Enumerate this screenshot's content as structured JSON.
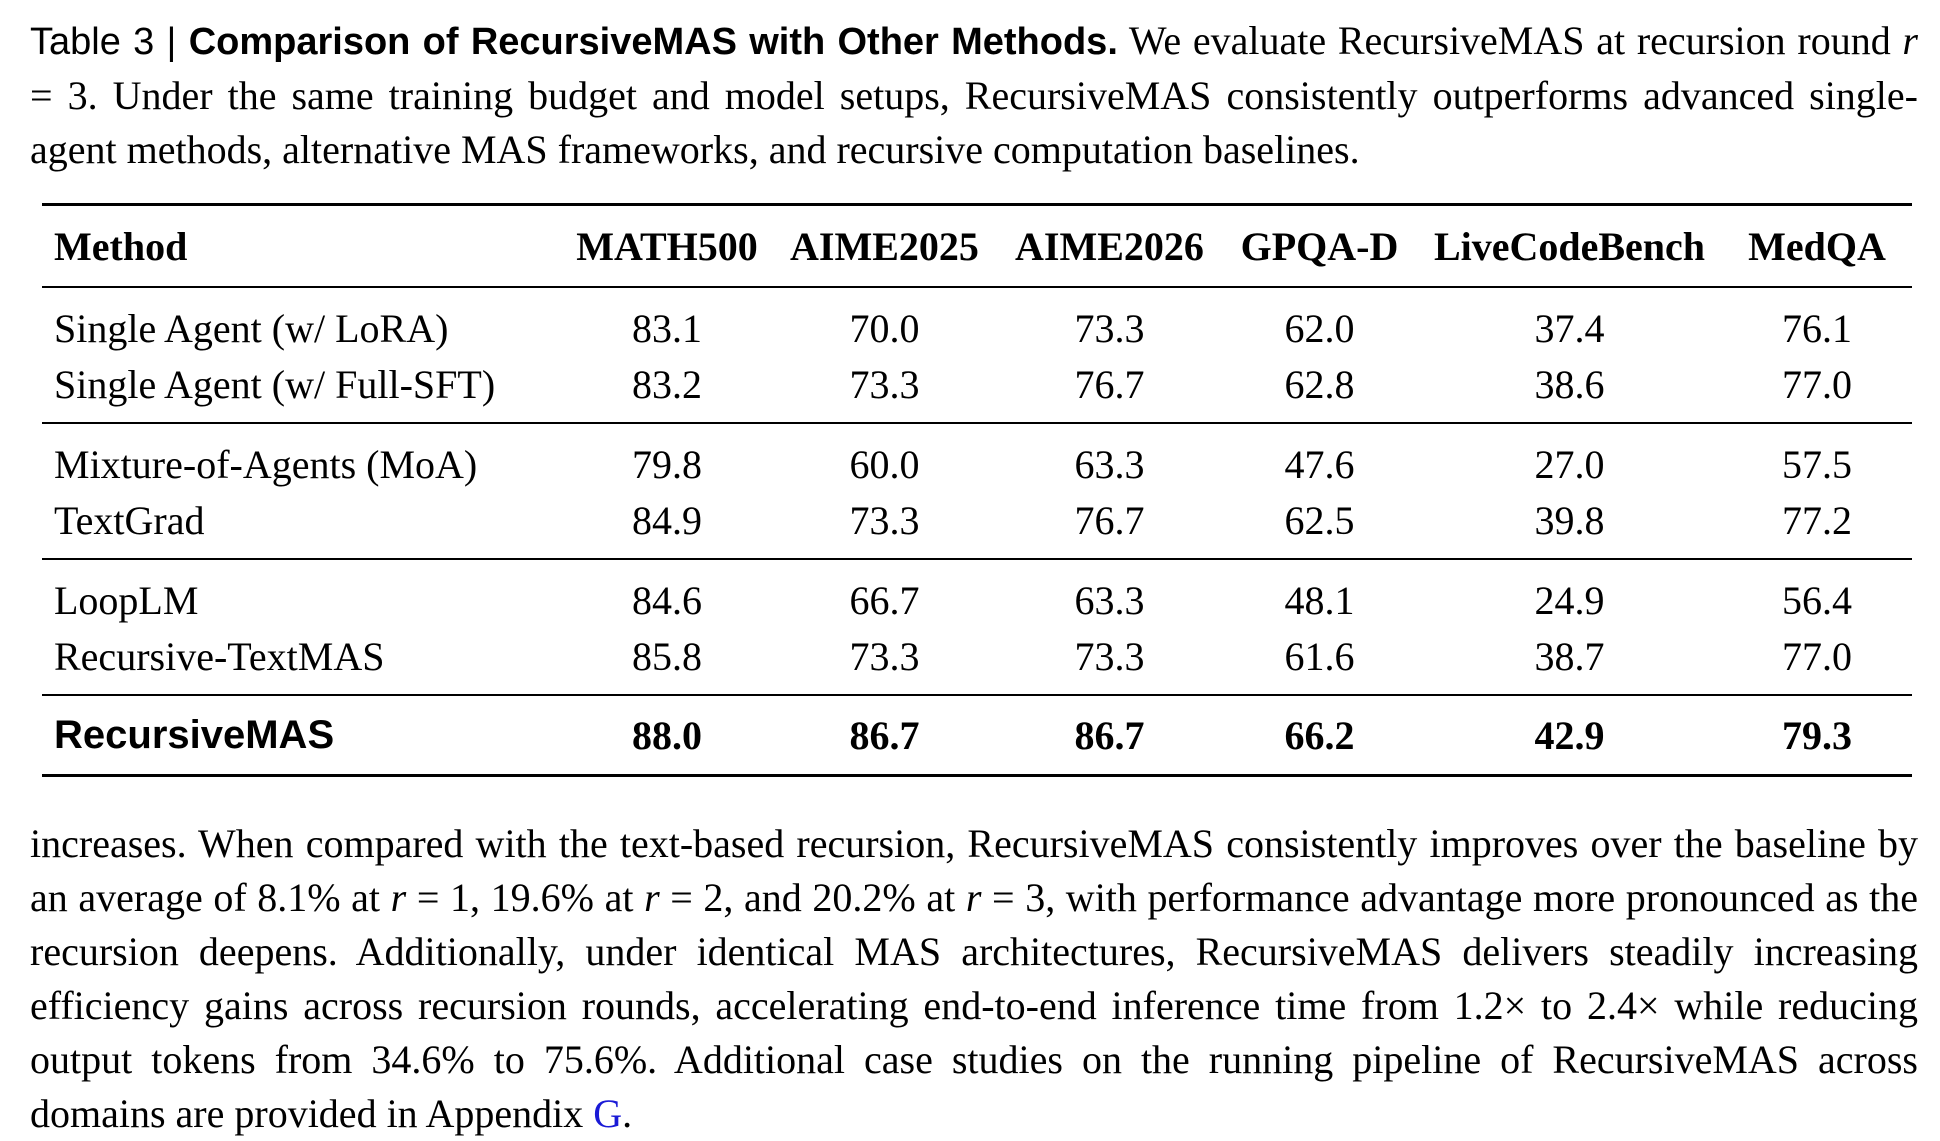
{
  "caption": {
    "label": "Table 3 | ",
    "title": "Comparison of RecursiveMAS with Other Methods.",
    "part1": " We evaluate RecursiveMAS at recursion round ",
    "var_r": "r",
    "part2": " = 3. Under the same training budget and model setups, RecursiveMAS consistently outperforms advanced single-agent methods, alternative MAS frameworks, and recursive computation baselines."
  },
  "table": {
    "columns": [
      "Method",
      "MATH500",
      "AIME2025",
      "AIME2026",
      "GPQA-D",
      "LiveCodeBench",
      "MedQA"
    ],
    "groups": [
      {
        "rows": [
          {
            "method": "Single Agent (w/ LoRA)",
            "values": [
              "83.1",
              "70.0",
              "73.3",
              "62.0",
              "37.4",
              "76.1"
            ]
          },
          {
            "method": "Single Agent (w/ Full-SFT)",
            "values": [
              "83.2",
              "73.3",
              "76.7",
              "62.8",
              "38.6",
              "77.0"
            ]
          }
        ]
      },
      {
        "rows": [
          {
            "method": "Mixture-of-Agents (MoA)",
            "values": [
              "79.8",
              "60.0",
              "63.3",
              "47.6",
              "27.0",
              "57.5"
            ]
          },
          {
            "method": "TextGrad",
            "values": [
              "84.9",
              "73.3",
              "76.7",
              "62.5",
              "39.8",
              "77.2"
            ]
          }
        ]
      },
      {
        "rows": [
          {
            "method": "LoopLM",
            "values": [
              "84.6",
              "66.7",
              "63.3",
              "48.1",
              "24.9",
              "56.4"
            ]
          },
          {
            "method": "Recursive-TextMAS",
            "values": [
              "85.8",
              "73.3",
              "73.3",
              "61.6",
              "38.7",
              "77.0"
            ]
          }
        ]
      }
    ],
    "final": {
      "method": "RecursiveMAS",
      "values": [
        "88.0",
        "86.7",
        "86.7",
        "66.2",
        "42.9",
        "79.3"
      ]
    }
  },
  "body": {
    "s1": "increases. When compared with the text-based recursion, RecursiveMAS consistently improves over the baseline by an average of 8.1% at ",
    "r1": "r",
    "s2": " = 1, 19.6% at ",
    "r2": "r",
    "s3": " = 2, and 20.2% at ",
    "r3": "r",
    "s4": " = 3, with performance advantage more pronounced as the recursion deepens. Additionally, under identical MAS architectures, RecursiveMAS delivers steadily increasing efficiency gains across recursion rounds, accelerating end-to-end inference time from 1.2× to 2.4× while reducing output tokens from 34.6% to 75.6%. Additional case studies on the running pipeline of RecursiveMAS across domains are provided in Appendix ",
    "link": "G",
    "s5": "."
  }
}
